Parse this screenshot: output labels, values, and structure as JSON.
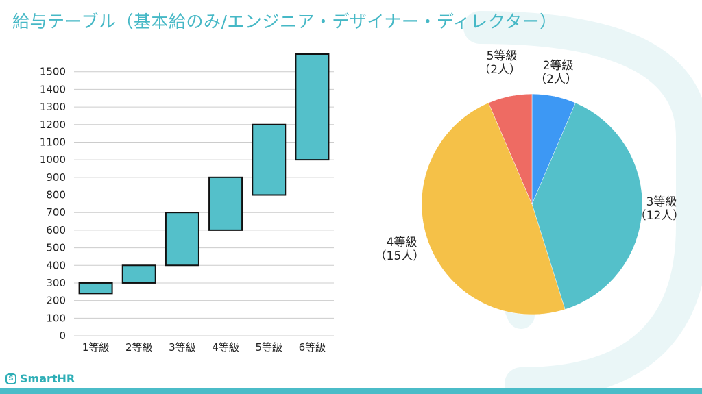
{
  "page": {
    "title": "給与テーブル（基本給のみ/エンジニア・デザイナー・ディレクター）",
    "brand": "SmartHR",
    "colors": {
      "title": "#46b8c6",
      "brand": "#2eaeb6",
      "bottom_bar": "#4bbcc8",
      "watermark": "#eaf6f7"
    },
    "icons": {
      "logo": "smarthr-logo-icon"
    }
  },
  "chart_data": [
    {
      "type": "bar",
      "subtype": "floating-range",
      "categories": [
        "1等級",
        "2等級",
        "3等級",
        "4等級",
        "5等級",
        "6等級"
      ],
      "series": [
        {
          "low": [
            240,
            300,
            400,
            600,
            800,
            1000
          ],
          "high": [
            300,
            400,
            700,
            900,
            1200,
            1600
          ]
        }
      ],
      "yticks": [
        0,
        100,
        200,
        300,
        400,
        500,
        600,
        700,
        800,
        900,
        1000,
        1100,
        1200,
        1300,
        1400,
        1500
      ],
      "ylim": [
        0,
        1600
      ],
      "grid": true,
      "colors": {
        "bar": "#54c0ca",
        "border": "#111111",
        "grid": "#cccccc"
      }
    },
    {
      "type": "pie",
      "slices": [
        {
          "label": "2等級",
          "count_label": "（2人）",
          "value": 2,
          "color": "#3d98f4"
        },
        {
          "label": "3等級",
          "count_label": "（12人）",
          "value": 12,
          "color": "#54c0ca"
        },
        {
          "label": "4等級",
          "count_label": "（15人）",
          "value": 15,
          "color": "#f5c148"
        },
        {
          "label": "5等級",
          "count_label": "（2人）",
          "value": 2,
          "color": "#ee6b63"
        }
      ],
      "start": "top",
      "direction": "clockwise"
    }
  ]
}
